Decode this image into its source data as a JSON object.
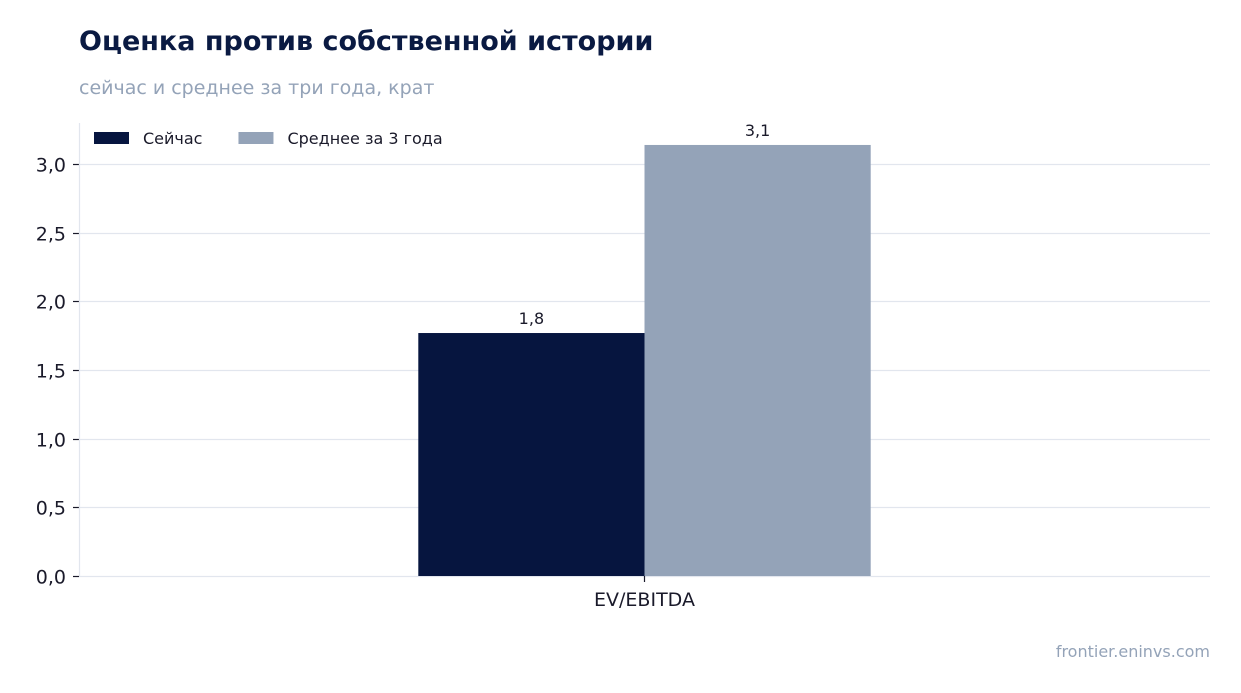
{
  "chart_data": {
    "type": "bar",
    "title": "Оценка против собственной истории",
    "subtitle": "сейчас и среднее за три года, крат",
    "categories": [
      "EV/EBITDA"
    ],
    "series": [
      {
        "name": "Сейчас",
        "values": [
          1.77
        ],
        "label": "1,8",
        "color": "#06153f"
      },
      {
        "name": "Среднее за 3 года",
        "values": [
          3.14
        ],
        "label": "3,1",
        "color": "#94a3b8"
      }
    ],
    "ylim": [
      0,
      3.3
    ],
    "yticks": [
      0,
      0.5,
      1,
      1.5,
      2,
      2.5,
      3
    ],
    "ytick_labels": [
      "0,0",
      "0,5",
      "1,0",
      "1,5",
      "2,0",
      "2,5",
      "3,0"
    ],
    "grid": true,
    "legend_position": "top-left",
    "xlabel": "",
    "ylabel": ""
  },
  "footer": {
    "source": "frontier.eninvs.com"
  }
}
